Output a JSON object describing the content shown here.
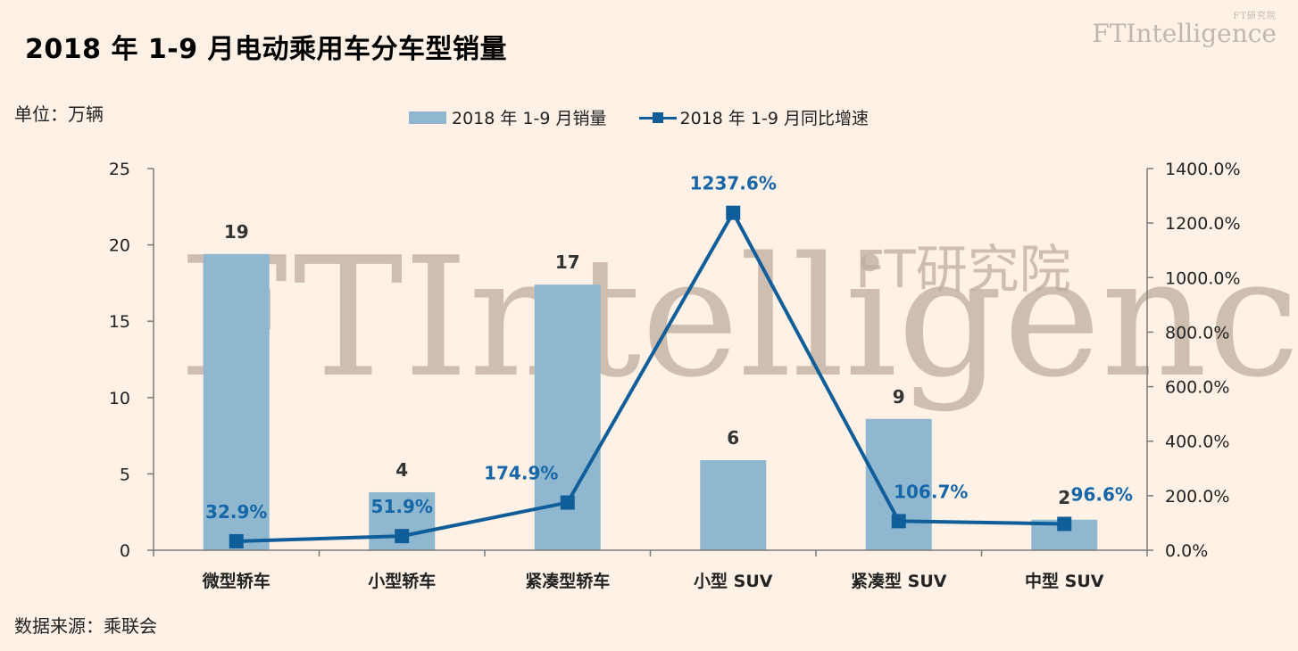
{
  "title": "2018 年 1-9 月电动乘用车分车型销量",
  "brand": {
    "en": "FTIntelligence",
    "cn": "FT研究院"
  },
  "unit_label": "单位：万辆",
  "source_label": "数据来源：乘联会",
  "watermark": {
    "en": "FTIntelligence",
    "cn": "FT研究院"
  },
  "legend": {
    "bar": "2018 年 1-9 月销量",
    "line": "2018 年 1-9 月同比增速"
  },
  "colors": {
    "bar": "#8FB8D0",
    "line": "#0F5E99",
    "background": "#FFF1E5"
  },
  "chart_data": {
    "type": "bar",
    "categories": [
      "微型轿车",
      "小型轿车",
      "紧凑型轿车",
      "小型 SUV",
      "紧凑型 SUV",
      "中型 SUV"
    ],
    "series": [
      {
        "name": "2018 年 1-9 月销量",
        "type": "bar",
        "axis": "left",
        "values": [
          19.4,
          3.8,
          17.4,
          5.9,
          8.6,
          2.0
        ],
        "labels": [
          "19",
          "4",
          "17",
          "6",
          "9",
          "2"
        ]
      },
      {
        "name": "2018 年 1-9 月同比增速",
        "type": "line",
        "axis": "right",
        "values": [
          32.9,
          51.9,
          174.9,
          1237.6,
          106.7,
          96.6
        ],
        "labels": [
          "32.9%",
          "51.9%",
          "174.9%",
          "1237.6%",
          "106.7%",
          "96.6%"
        ]
      }
    ],
    "y_left": {
      "range": [
        0,
        25
      ],
      "ticks": [
        "0",
        "5",
        "10",
        "15",
        "20",
        "25"
      ]
    },
    "y_right": {
      "range": [
        0,
        1400
      ],
      "ticks": [
        "0.0%",
        "200.0%",
        "400.0%",
        "600.0%",
        "800.0%",
        "1000.0%",
        "1200.0%",
        "1400.0%"
      ]
    },
    "legend_position": "top",
    "grid": false
  }
}
